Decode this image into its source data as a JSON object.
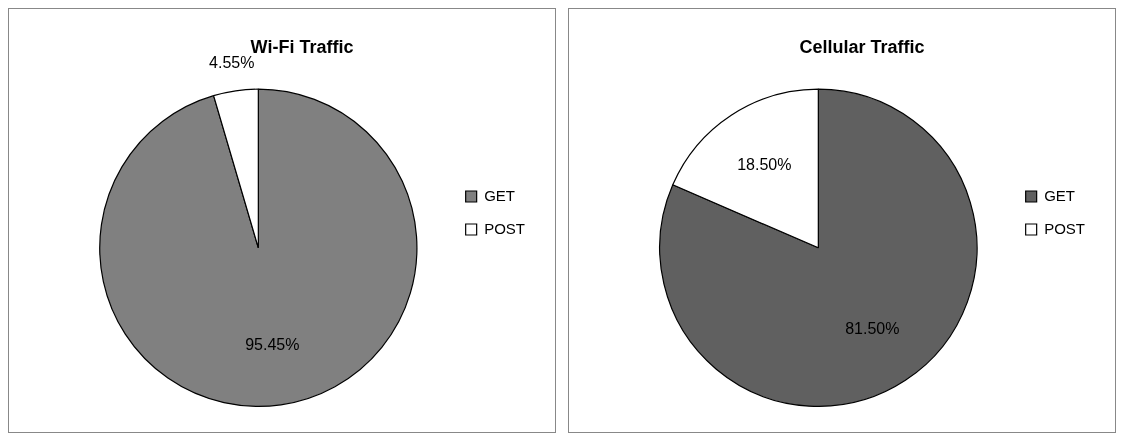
{
  "chart_data": [
    {
      "type": "pie",
      "title": "Wi-Fi Traffic",
      "categories": [
        "GET",
        "POST"
      ],
      "values": [
        95.45,
        4.55
      ],
      "colors": [
        "#808080",
        "#ffffff"
      ],
      "value_labels": [
        "95.45%",
        "4.55%"
      ],
      "legend": "right"
    },
    {
      "type": "pie",
      "title": "Cellular Traffic",
      "categories": [
        "GET",
        "POST"
      ],
      "values": [
        81.5,
        18.5
      ],
      "colors": [
        "#606060",
        "#ffffff"
      ],
      "value_labels": [
        "81.50%",
        "18.50%"
      ],
      "legend": "right"
    }
  ]
}
